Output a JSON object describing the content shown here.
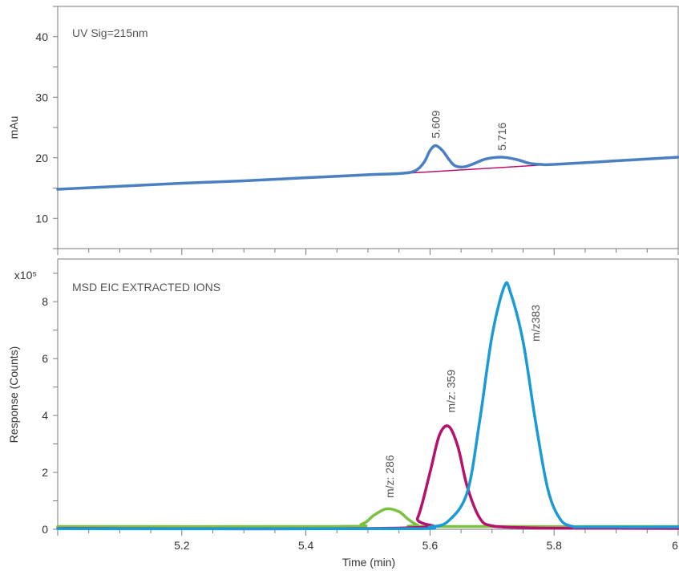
{
  "chart_data": [
    {
      "type": "line",
      "title": "UV Sig=215nm",
      "ylabel": "mAu",
      "ylim": [
        5,
        45
      ],
      "yticks": [
        10,
        20,
        30,
        40
      ],
      "xlim": [
        5.0,
        6.0
      ],
      "colors": {
        "signal": "#4a7fc1",
        "baseline": "#b5126e"
      },
      "series": [
        {
          "x": [
            5.0,
            5.1,
            5.2,
            5.3,
            5.4,
            5.5,
            5.55,
            5.575,
            5.59,
            5.6,
            5.609,
            5.62,
            5.63,
            5.64,
            5.655,
            5.67,
            5.69,
            5.716,
            5.74,
            5.76,
            5.78,
            5.8,
            5.9,
            6.0
          ],
          "y": [
            14.8,
            15.3,
            15.8,
            16.2,
            16.7,
            17.2,
            17.4,
            17.8,
            19.2,
            21.2,
            22.0,
            21.2,
            19.8,
            18.7,
            18.5,
            19.0,
            19.8,
            20.1,
            19.7,
            19.1,
            18.9,
            18.9,
            19.5,
            20.1
          ]
        },
        {
          "x": [
            5.57,
            5.78
          ],
          "y": [
            17.5,
            18.8
          ]
        }
      ],
      "annotations": [
        {
          "text": "5.609",
          "x": 5.609,
          "y": 23.2
        },
        {
          "text": "5.716",
          "x": 5.716,
          "y": 21.2
        }
      ]
    },
    {
      "type": "line",
      "title": "MSD EIC EXTRACTED IONS",
      "ylabel": "Response (Counts)",
      "yunit": "x10⁵",
      "ylim": [
        0,
        9.5
      ],
      "yticks": [
        0,
        2,
        4,
        6,
        8
      ],
      "xlabel": "Time (min)",
      "xlim": [
        5.0,
        6.0
      ],
      "xticks": [
        "5.2",
        "5.4",
        "5.6",
        "5.8",
        "6"
      ],
      "series": [
        {
          "color": "#7cc142",
          "x": [
            5.0,
            5.45,
            5.49,
            5.51,
            5.53,
            5.55,
            5.565,
            5.58,
            5.6,
            6.0
          ],
          "y": [
            0.1,
            0.1,
            0.18,
            0.5,
            0.72,
            0.62,
            0.35,
            0.15,
            0.1,
            0.1
          ]
        },
        {
          "color": "#b5126e",
          "x": [
            5.0,
            5.56,
            5.58,
            5.6,
            5.615,
            5.63,
            5.645,
            5.66,
            5.68,
            5.7,
            5.75,
            5.8,
            6.0
          ],
          "y": [
            0.03,
            0.05,
            0.4,
            2.0,
            3.3,
            3.62,
            2.9,
            1.5,
            0.4,
            0.12,
            0.06,
            0.04,
            0.03
          ]
        },
        {
          "color": "#1a9ad6",
          "x": [
            5.0,
            5.55,
            5.6,
            5.63,
            5.66,
            5.68,
            5.7,
            5.72,
            5.73,
            5.75,
            5.77,
            5.79,
            5.81,
            5.83,
            5.85,
            6.0
          ],
          "y": [
            0.02,
            0.02,
            0.08,
            0.3,
            1.3,
            3.8,
            6.8,
            8.55,
            8.3,
            6.6,
            3.8,
            1.4,
            0.35,
            0.1,
            0.08,
            0.08
          ]
        }
      ],
      "annotations": [
        {
          "text": "m/z: 286",
          "x": 5.535,
          "y": 1.1
        },
        {
          "text": "m/z: 359",
          "x": 5.634,
          "y": 4.1
        },
        {
          "text": "m/z383",
          "x": 5.77,
          "y": 6.6
        }
      ]
    }
  ]
}
